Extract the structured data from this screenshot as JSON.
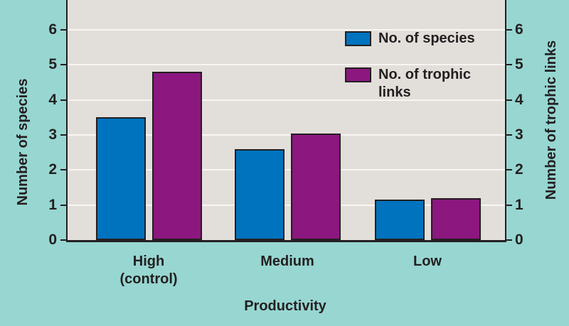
{
  "figure": {
    "background_color": "#97d6d1",
    "plot_background_color": "#e2deda",
    "grid_color": "#f8f6f3",
    "axis_color": "#231f20"
  },
  "chart_data": {
    "type": "bar",
    "title": "",
    "categories": [
      {
        "label": "High (control)",
        "lines": [
          "High",
          "(control)"
        ]
      },
      {
        "label": "Medium",
        "lines": [
          "Medium"
        ]
      },
      {
        "label": "Low",
        "lines": [
          "Low"
        ]
      }
    ],
    "series": [
      {
        "name": "No. of species",
        "color": "#0073be",
        "values": [
          3.5,
          2.6,
          1.15
        ]
      },
      {
        "name": "No. of trophic links",
        "color": "#8b177f",
        "values": [
          4.8,
          3.05,
          1.2
        ]
      }
    ],
    "xlabel": "Productivity",
    "ylabel_left": "Number of species",
    "ylabel_right": "Number of trophic links",
    "ylim": [
      0,
      6.85
    ],
    "yticks": [
      0,
      1,
      2,
      3,
      4,
      5,
      6
    ],
    "gridlines": [
      1,
      2,
      3,
      4,
      5,
      6
    ],
    "grid": true,
    "legend_position": "top-right"
  }
}
